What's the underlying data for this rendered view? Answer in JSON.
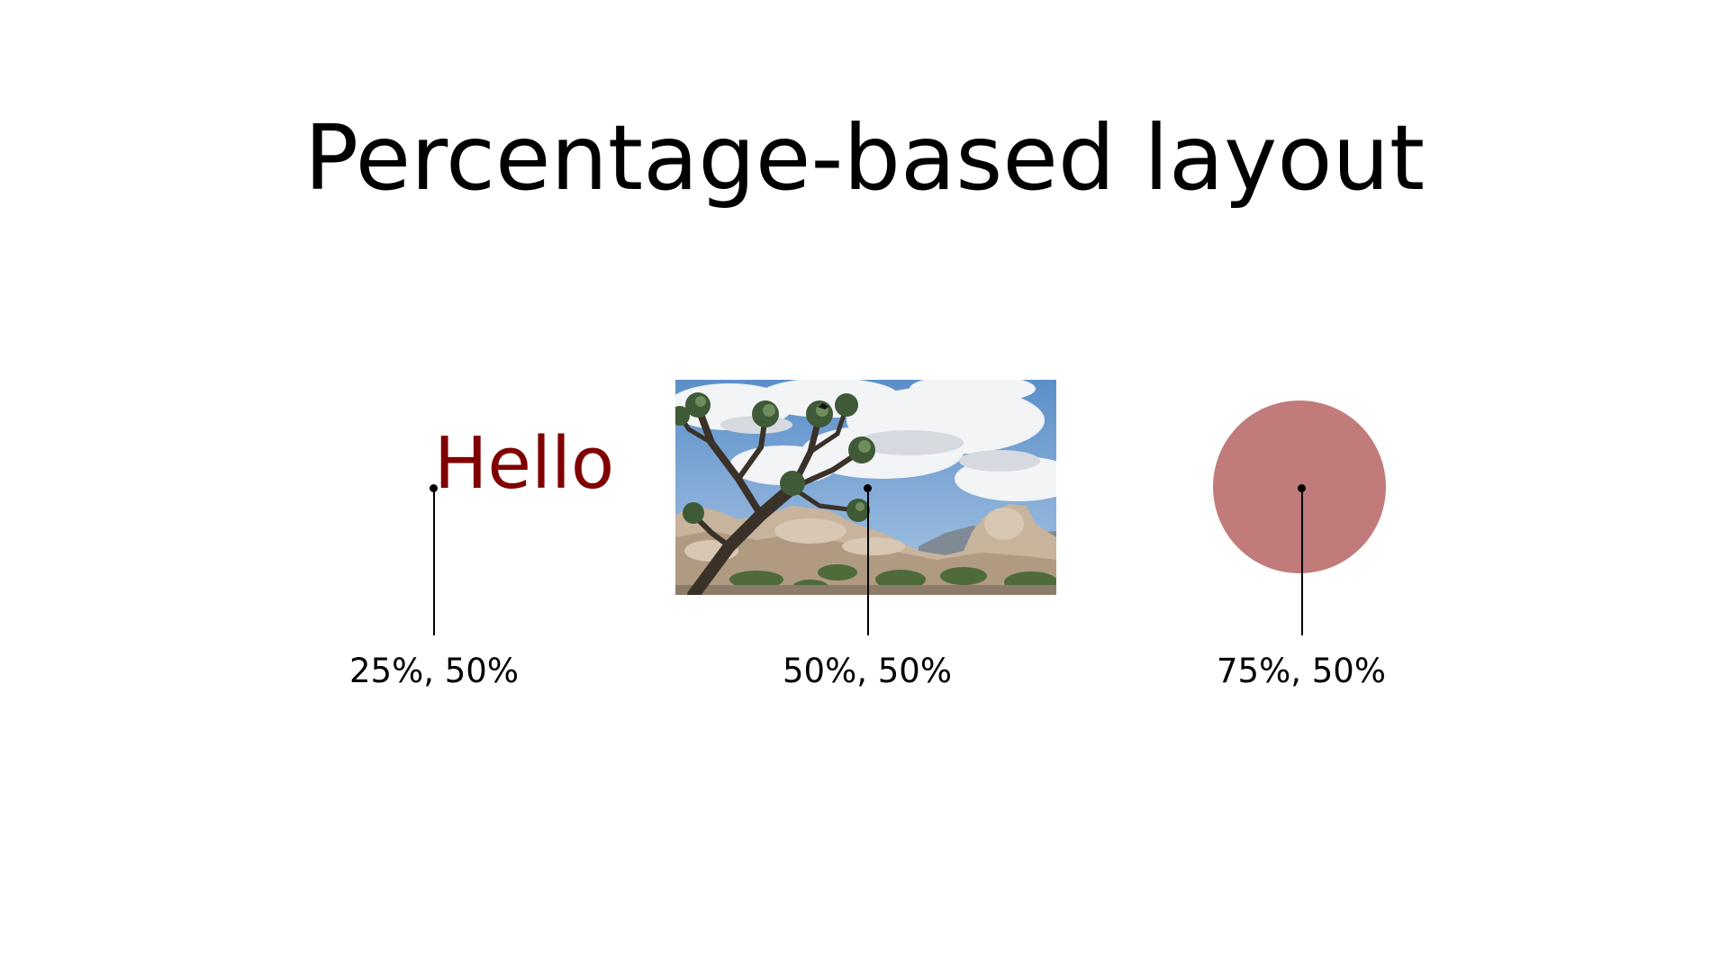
{
  "title": "Percentage-based layout",
  "items": {
    "text": {
      "label": "Hello",
      "color": "#800000"
    },
    "photo": {
      "description_icon": "joshua-tree-landscape-photo"
    },
    "shape": {
      "color": "#c17b7b"
    }
  },
  "markers": [
    {
      "caption": "25%, 50%"
    },
    {
      "caption": "50%, 50%"
    },
    {
      "caption": "75%, 50%"
    }
  ]
}
